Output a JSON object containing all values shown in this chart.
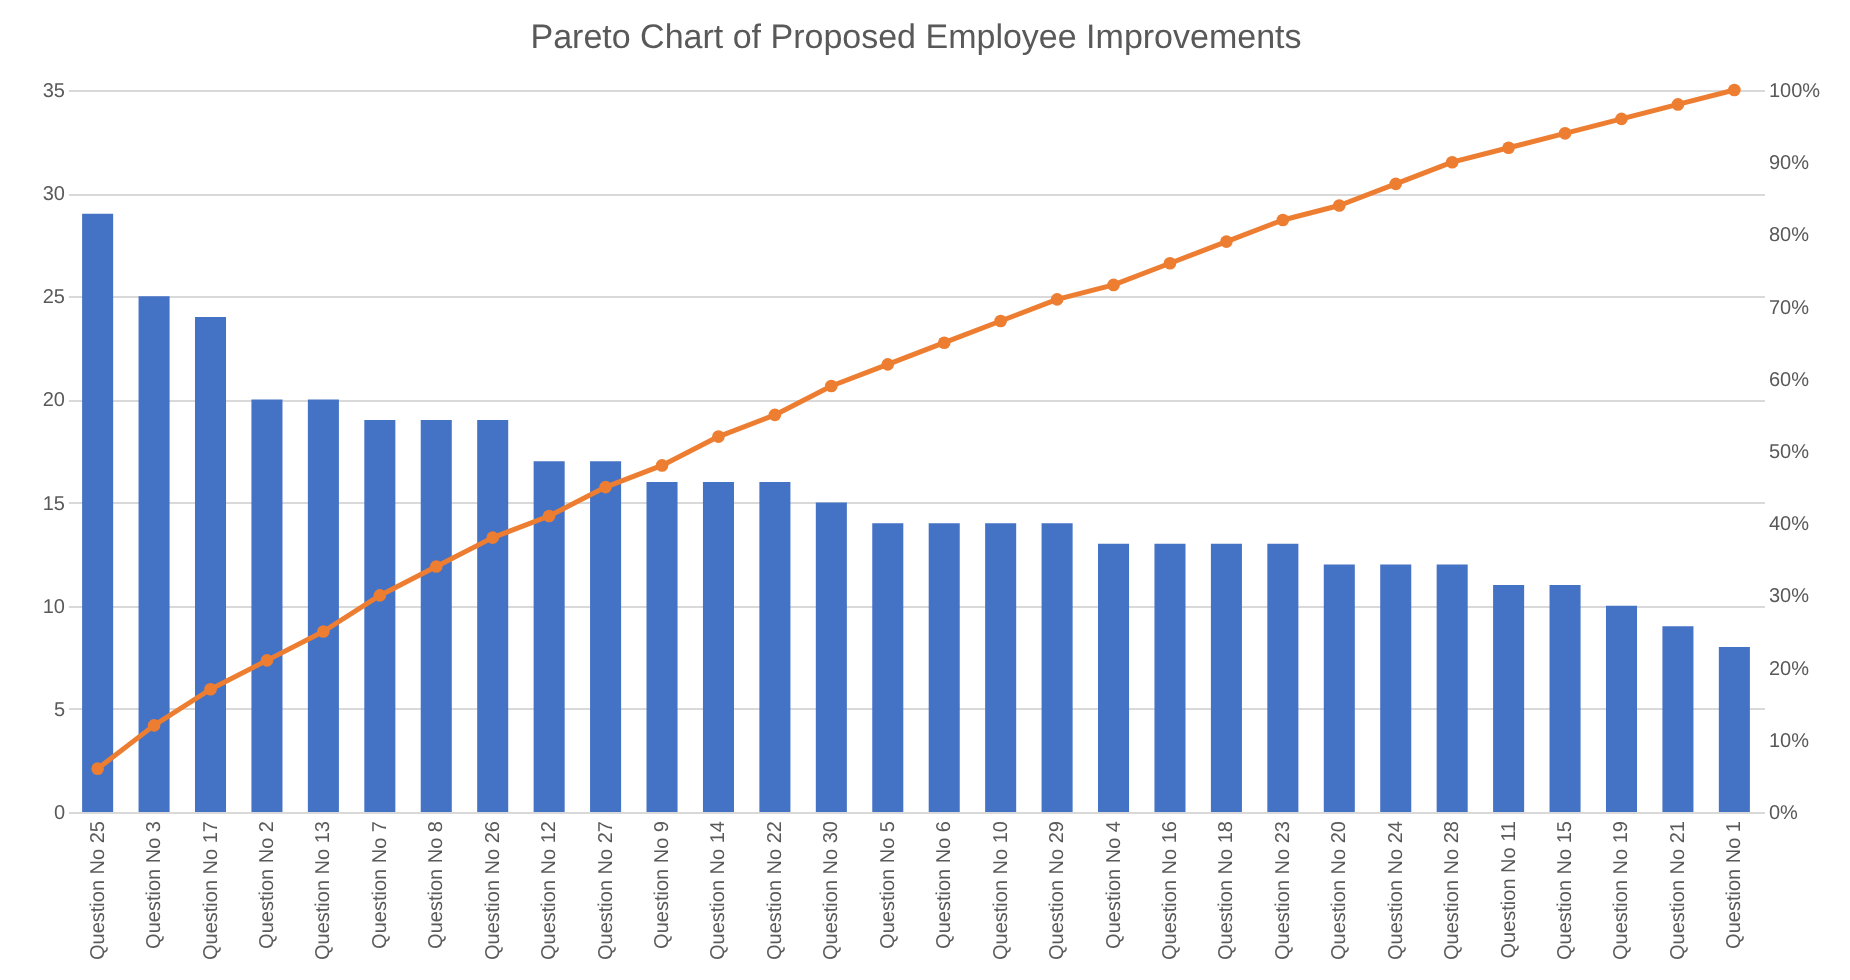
{
  "chart_data": {
    "type": "bar",
    "title": "Pareto Chart of Proposed Employee Improvements",
    "categories": [
      "Question No 25",
      "Question No 3",
      "Question No 17",
      "Question No 2",
      "Question No 13",
      "Question No 7",
      "Question No 8",
      "Question No 26",
      "Question No 12",
      "Question No 27",
      "Question No 9",
      "Question No 14",
      "Question No 22",
      "Question No 30",
      "Question No 5",
      "Question No 6",
      "Question No 10",
      "Question No 29",
      "Question No 4",
      "Question No 16",
      "Question No 18",
      "Question No 23",
      "Question No 20",
      "Question No 24",
      "Question No 28",
      "Question No 11",
      "Question No 15",
      "Question No 19",
      "Question No 21",
      "Question No 1"
    ],
    "series": [
      {
        "color": "#4472c4",
        "values": [
          29,
          25,
          24,
          20,
          20,
          19,
          19,
          19,
          17,
          17,
          16,
          16,
          16,
          15,
          14,
          14,
          14,
          14,
          13,
          13,
          13,
          13,
          12,
          12,
          12,
          11,
          11,
          10,
          9,
          8
        ]
      },
      {
        "type": "line",
        "axis": "y2",
        "color": "#ed7d31",
        "values": [
          6,
          12,
          17,
          21,
          25,
          30,
          34,
          38,
          41,
          45,
          48,
          52,
          55,
          59,
          62,
          65,
          68,
          71,
          73,
          76,
          79,
          82,
          84,
          87,
          90,
          92,
          94,
          96,
          98,
          100
        ]
      }
    ],
    "ylim": [
      0,
      35
    ],
    "yticks": [
      0,
      5,
      10,
      15,
      20,
      25,
      30,
      35
    ],
    "y2lim": [
      0,
      100
    ],
    "y2ticks": [
      {
        "value": 0,
        "label": "0%"
      },
      {
        "value": 10,
        "label": "10%"
      },
      {
        "value": 20,
        "label": "20%"
      },
      {
        "value": 30,
        "label": "30%"
      },
      {
        "value": 40,
        "label": "40%"
      },
      {
        "value": 50,
        "label": "50%"
      },
      {
        "value": 60,
        "label": "60%"
      },
      {
        "value": 70,
        "label": "70%"
      },
      {
        "value": 80,
        "label": "80%"
      },
      {
        "value": 90,
        "label": "90%"
      },
      {
        "value": 100,
        "label": "100%"
      }
    ],
    "grid": "y",
    "marker": "circle",
    "line_style": "solid"
  }
}
